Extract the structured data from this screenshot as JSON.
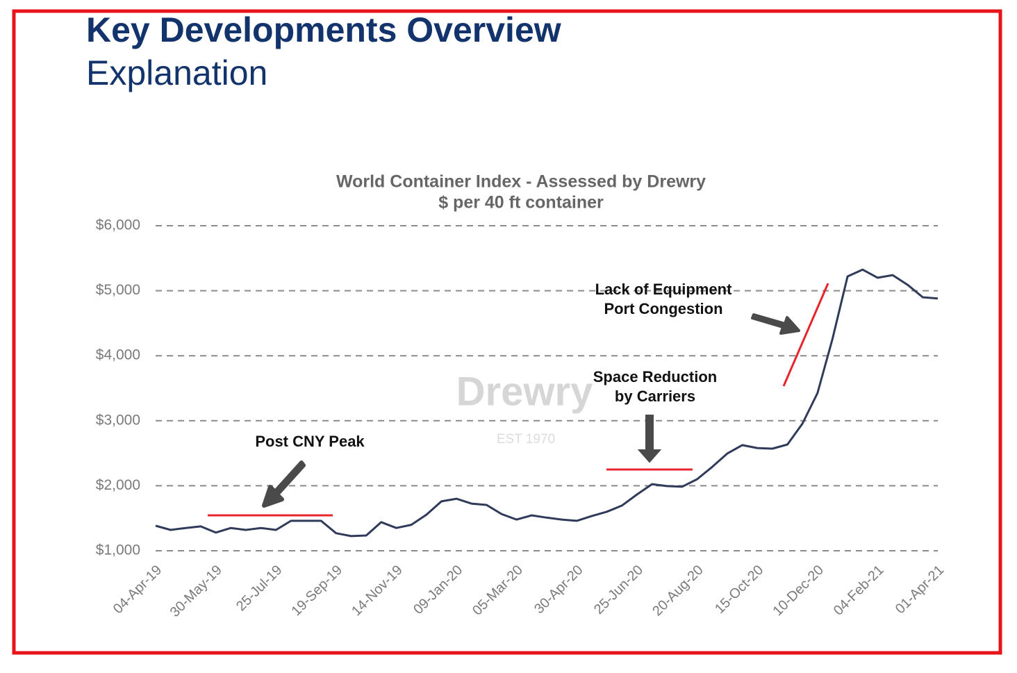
{
  "header": {
    "title": "Key Developments Overview",
    "subtitle": "Explanation"
  },
  "chart_data": {
    "type": "line",
    "title": "World Container Index - Assessed by Drewry",
    "subtitle": "$ per 40 ft container",
    "watermark": [
      "Drewry",
      "EST 1970"
    ],
    "x": [
      "2019-04-04",
      "2019-04-18",
      "2019-05-02",
      "2019-05-16",
      "2019-05-30",
      "2019-06-13",
      "2019-06-27",
      "2019-07-11",
      "2019-07-25",
      "2019-08-08",
      "2019-08-22",
      "2019-09-05",
      "2019-09-19",
      "2019-10-03",
      "2019-10-17",
      "2019-10-31",
      "2019-11-14",
      "2019-11-28",
      "2019-12-12",
      "2019-12-26",
      "2020-01-09",
      "2020-01-23",
      "2020-02-06",
      "2020-02-20",
      "2020-03-05",
      "2020-03-19",
      "2020-04-02",
      "2020-04-16",
      "2020-04-30",
      "2020-05-14",
      "2020-05-28",
      "2020-06-11",
      "2020-06-25",
      "2020-07-09",
      "2020-07-23",
      "2020-08-06",
      "2020-08-20",
      "2020-09-03",
      "2020-09-17",
      "2020-10-01",
      "2020-10-15",
      "2020-10-29",
      "2020-11-12",
      "2020-11-26",
      "2020-12-10",
      "2020-12-24",
      "2021-01-07",
      "2021-01-21",
      "2021-02-04",
      "2021-02-18",
      "2021-03-04",
      "2021-03-18",
      "2021-04-01"
    ],
    "series": [
      {
        "name": "World Container Index",
        "color": "#2f3b58",
        "values": [
          1385,
          1320,
          1350,
          1375,
          1280,
          1350,
          1320,
          1350,
          1320,
          1460,
          1460,
          1460,
          1270,
          1225,
          1235,
          1440,
          1350,
          1400,
          1555,
          1760,
          1800,
          1725,
          1705,
          1565,
          1480,
          1545,
          1510,
          1480,
          1460,
          1535,
          1600,
          1695,
          1865,
          2025,
          1995,
          1985,
          2100,
          2290,
          2495,
          2625,
          2580,
          2570,
          2635,
          2955,
          3425,
          4260,
          5220,
          5325,
          5200,
          5240,
          5090,
          4900,
          4880
        ]
      }
    ],
    "xlim": [
      "2019-04-04",
      "2021-04-01"
    ],
    "xticks": [
      {
        "value": "2019-04-04",
        "label": "04-Apr-19"
      },
      {
        "value": "2019-05-30",
        "label": "30-May-19"
      },
      {
        "value": "2019-07-25",
        "label": "25-Jul-19"
      },
      {
        "value": "2019-09-19",
        "label": "19-Sep-19"
      },
      {
        "value": "2019-11-14",
        "label": "14-Nov-19"
      },
      {
        "value": "2020-01-09",
        "label": "09-Jan-20"
      },
      {
        "value": "2020-03-05",
        "label": "05-Mar-20"
      },
      {
        "value": "2020-04-30",
        "label": "30-Apr-20"
      },
      {
        "value": "2020-06-25",
        "label": "25-Jun-20"
      },
      {
        "value": "2020-08-20",
        "label": "20-Aug-20"
      },
      {
        "value": "2020-10-15",
        "label": "15-Oct-20"
      },
      {
        "value": "2020-12-10",
        "label": "10-Dec-20"
      },
      {
        "value": "2021-02-04",
        "label": "04-Feb-21"
      },
      {
        "value": "2021-04-01",
        "label": "01-Apr-21"
      }
    ],
    "ylim": [
      1000,
      6000
    ],
    "yticks": [
      {
        "value": 1000,
        "label": "$1,000"
      },
      {
        "value": 2000,
        "label": "$2,000"
      },
      {
        "value": 3000,
        "label": "$3,000"
      },
      {
        "value": 4000,
        "label": "$4,000"
      },
      {
        "value": 5000,
        "label": "$5,000"
      },
      {
        "value": 6000,
        "label": "$6,000"
      }
    ],
    "grid": true,
    "annotations": [
      {
        "text": [
          "Post CNY Peak"
        ]
      },
      {
        "text": [
          "Space Reduction",
          "by Carriers"
        ]
      },
      {
        "text": [
          "Lack of Equipment",
          "Port Congestion"
        ]
      }
    ]
  }
}
